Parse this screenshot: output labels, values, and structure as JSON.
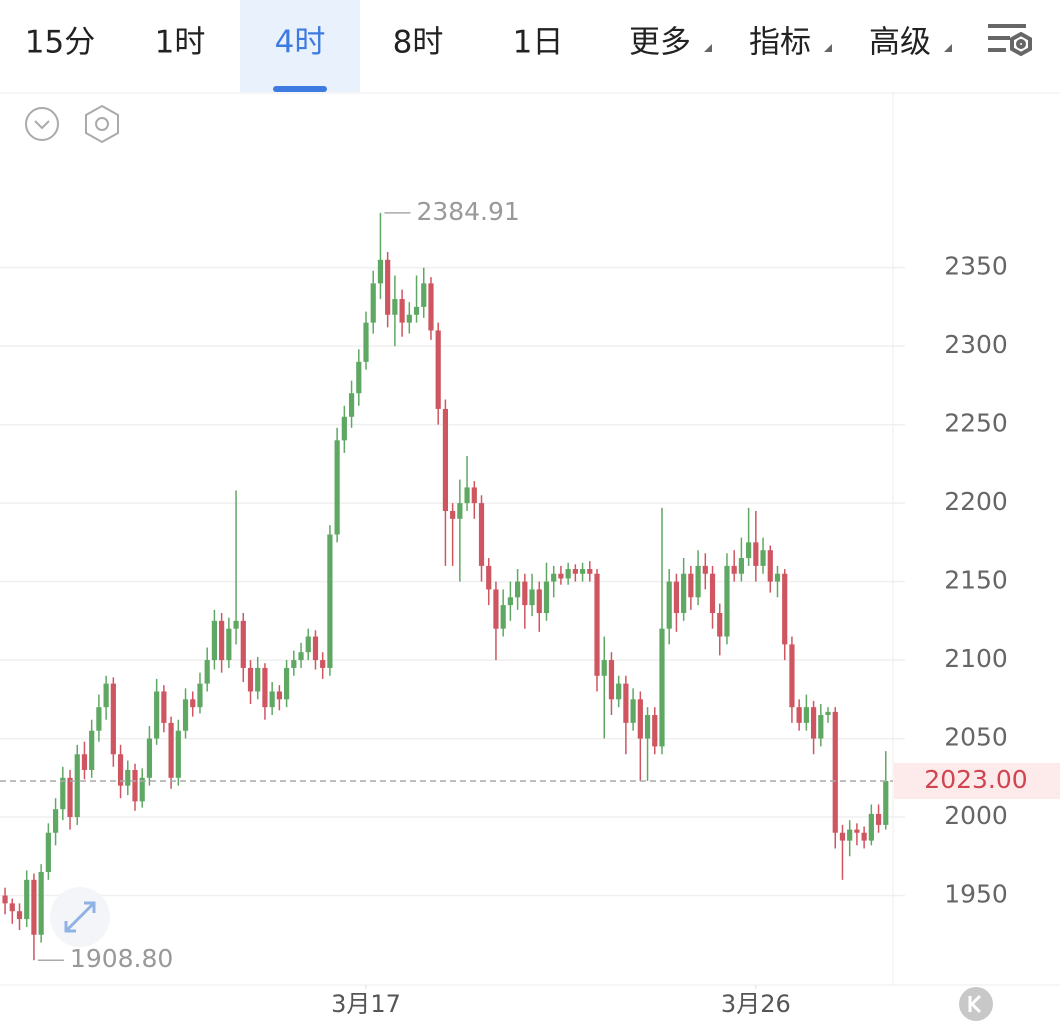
{
  "toolbar": {
    "tabs": [
      "15分",
      "1时",
      "4时",
      "8时",
      "1日",
      "更多",
      "指标",
      "高级"
    ],
    "active": 2
  },
  "chart_data": {
    "type": "candlestick",
    "up_color": "#5fa863",
    "down_color": "#cf5560",
    "xlim": [
      -0.7,
      123
    ],
    "xticks": [
      {
        "value": 50,
        "label": "3月17"
      },
      {
        "value": 104,
        "label": "3月26"
      }
    ],
    "ylim": [
      1893,
      2460
    ],
    "yticks": [
      1950,
      2000,
      2050,
      2100,
      2150,
      2200,
      2250,
      2300,
      2350
    ],
    "grid": true,
    "last_price": {
      "value": 2023,
      "label": "2023.00"
    },
    "annotations": [
      {
        "index": 52,
        "value": 2384.91,
        "label": "2384.91"
      },
      {
        "index": 4,
        "value": 1908.8,
        "label": "1908.80"
      }
    ],
    "ohlc": [
      [
        1950,
        1955,
        1938,
        1945
      ],
      [
        1945,
        1948,
        1932,
        1940
      ],
      [
        1940,
        1945,
        1928,
        1935
      ],
      [
        1935,
        1966,
        1930,
        1960
      ],
      [
        1960,
        1964,
        1908.8,
        1925
      ],
      [
        1925,
        1970,
        1920,
        1965
      ],
      [
        1965,
        1996,
        1960,
        1990
      ],
      [
        1990,
        2012,
        1982,
        2005
      ],
      [
        2005,
        2032,
        1998,
        2025
      ],
      [
        2025,
        2030,
        1992,
        2000
      ],
      [
        2000,
        2046,
        1995,
        2040
      ],
      [
        2040,
        2048,
        2024,
        2030
      ],
      [
        2030,
        2062,
        2025,
        2055
      ],
      [
        2055,
        2078,
        2048,
        2070
      ],
      [
        2070,
        2090,
        2062,
        2085
      ],
      [
        2085,
        2089,
        2032,
        2040
      ],
      [
        2040,
        2046,
        2012,
        2020
      ],
      [
        2020,
        2036,
        2014,
        2030
      ],
      [
        2030,
        2034,
        2004,
        2010
      ],
      [
        2010,
        2031,
        2006,
        2025
      ],
      [
        2025,
        2058,
        2020,
        2050
      ],
      [
        2050,
        2088,
        2046,
        2080
      ],
      [
        2080,
        2084,
        2054,
        2060
      ],
      [
        2060,
        2064,
        2018,
        2025
      ],
      [
        2025,
        2062,
        2020,
        2055
      ],
      [
        2055,
        2082,
        2050,
        2075
      ],
      [
        2075,
        2080,
        2064,
        2070
      ],
      [
        2070,
        2092,
        2066,
        2085
      ],
      [
        2085,
        2108,
        2080,
        2100
      ],
      [
        2100,
        2132,
        2094,
        2125
      ],
      [
        2125,
        2130,
        2092,
        2100
      ],
      [
        2100,
        2127,
        2095,
        2120
      ],
      [
        2120,
        2208,
        2110,
        2125
      ],
      [
        2125,
        2130,
        2086,
        2095
      ],
      [
        2095,
        2100,
        2072,
        2080
      ],
      [
        2080,
        2102,
        2075,
        2095
      ],
      [
        2095,
        2098,
        2062,
        2070
      ],
      [
        2070,
        2086,
        2065,
        2080
      ],
      [
        2080,
        2084,
        2068,
        2075
      ],
      [
        2075,
        2100,
        2070,
        2095
      ],
      [
        2095,
        2106,
        2090,
        2100
      ],
      [
        2100,
        2111,
        2095,
        2105
      ],
      [
        2105,
        2120,
        2100,
        2115
      ],
      [
        2115,
        2119,
        2094,
        2100
      ],
      [
        2100,
        2105,
        2088,
        2095
      ],
      [
        2095,
        2186,
        2090,
        2180
      ],
      [
        2180,
        2248,
        2175,
        2240
      ],
      [
        2240,
        2262,
        2232,
        2255
      ],
      [
        2255,
        2278,
        2248,
        2270
      ],
      [
        2270,
        2298,
        2262,
        2290
      ],
      [
        2290,
        2322,
        2285,
        2315
      ],
      [
        2315,
        2348,
        2308,
        2340
      ],
      [
        2340,
        2384.91,
        2330,
        2355
      ],
      [
        2355,
        2360,
        2312,
        2320
      ],
      [
        2320,
        2345,
        2300,
        2330
      ],
      [
        2330,
        2336,
        2306,
        2315
      ],
      [
        2315,
        2328,
        2308,
        2320
      ],
      [
        2320,
        2345,
        2315,
        2325
      ],
      [
        2325,
        2350,
        2318,
        2340
      ],
      [
        2340,
        2344,
        2304,
        2310
      ],
      [
        2310,
        2315,
        2250,
        2260
      ],
      [
        2260,
        2266,
        2160,
        2195
      ],
      [
        2195,
        2200,
        2160,
        2190
      ],
      [
        2190,
        2215,
        2150,
        2200
      ],
      [
        2200,
        2230,
        2195,
        2210
      ],
      [
        2210,
        2214,
        2190,
        2200
      ],
      [
        2200,
        2205,
        2150,
        2160
      ],
      [
        2160,
        2165,
        2135,
        2145
      ],
      [
        2145,
        2150,
        2100,
        2120
      ],
      [
        2120,
        2145,
        2115,
        2135
      ],
      [
        2135,
        2150,
        2125,
        2140
      ],
      [
        2140,
        2158,
        2132,
        2150
      ],
      [
        2150,
        2155,
        2120,
        2135
      ],
      [
        2135,
        2155,
        2128,
        2145
      ],
      [
        2145,
        2150,
        2118,
        2130
      ],
      [
        2130,
        2162,
        2125,
        2150
      ],
      [
        2150,
        2160,
        2140,
        2155
      ],
      [
        2155,
        2160,
        2148,
        2152
      ],
      [
        2152,
        2162,
        2148,
        2158
      ],
      [
        2158,
        2161,
        2150,
        2155
      ],
      [
        2155,
        2162,
        2150,
        2158
      ],
      [
        2158,
        2163,
        2150,
        2155
      ],
      [
        2155,
        2158,
        2080,
        2090
      ],
      [
        2090,
        2115,
        2050,
        2100
      ],
      [
        2100,
        2105,
        2065,
        2075
      ],
      [
        2075,
        2090,
        2070,
        2085
      ],
      [
        2085,
        2090,
        2040,
        2060
      ],
      [
        2060,
        2082,
        2055,
        2075
      ],
      [
        2075,
        2080,
        2023,
        2050
      ],
      [
        2050,
        2070,
        2023,
        2065
      ],
      [
        2065,
        2070,
        2040,
        2045
      ],
      [
        2045,
        2197,
        2040,
        2120
      ],
      [
        2120,
        2158,
        2110,
        2150
      ],
      [
        2150,
        2155,
        2118,
        2130
      ],
      [
        2130,
        2165,
        2125,
        2155
      ],
      [
        2155,
        2160,
        2132,
        2140
      ],
      [
        2140,
        2170,
        2135,
        2160
      ],
      [
        2160,
        2168,
        2145,
        2155
      ],
      [
        2155,
        2160,
        2120,
        2130
      ],
      [
        2130,
        2136,
        2103,
        2115
      ],
      [
        2115,
        2168,
        2110,
        2160
      ],
      [
        2160,
        2170,
        2150,
        2155
      ],
      [
        2155,
        2178,
        2150,
        2165
      ],
      [
        2165,
        2197,
        2160,
        2175
      ],
      [
        2175,
        2195,
        2150,
        2160
      ],
      [
        2160,
        2178,
        2155,
        2170
      ],
      [
        2170,
        2173,
        2143,
        2150
      ],
      [
        2150,
        2160,
        2140,
        2155
      ],
      [
        2155,
        2158,
        2100,
        2110
      ],
      [
        2110,
        2115,
        2060,
        2070
      ],
      [
        2070,
        2075,
        2055,
        2060
      ],
      [
        2060,
        2078,
        2055,
        2070
      ],
      [
        2070,
        2074,
        2040,
        2050
      ],
      [
        2050,
        2072,
        2045,
        2065
      ],
      [
        2065,
        2070,
        2060,
        2067
      ],
      [
        2067,
        2070,
        1980,
        1990
      ],
      [
        1990,
        1995,
        1960,
        1985
      ],
      [
        1985,
        1998,
        1975,
        1992
      ],
      [
        1992,
        1996,
        1982,
        1990
      ],
      [
        1990,
        1994,
        1980,
        1985
      ],
      [
        1985,
        2008,
        1982,
        2002
      ],
      [
        2002,
        2008,
        1990,
        1995
      ],
      [
        1995,
        2042,
        1992,
        2023
      ]
    ]
  }
}
